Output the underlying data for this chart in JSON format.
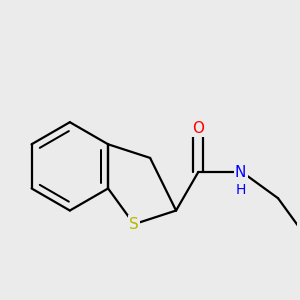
{
  "bg_color": "#ebebeb",
  "atom_colors": {
    "S": "#b8b800",
    "O": "#ff0000",
    "N": "#0000ff",
    "C": "#000000"
  },
  "bond_color": "#000000",
  "bond_width": 1.6
}
